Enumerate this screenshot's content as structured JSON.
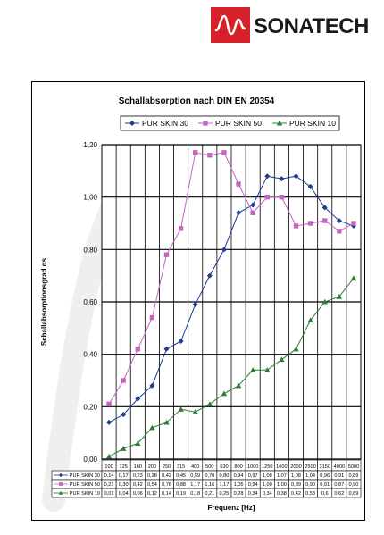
{
  "brand": {
    "name": "SONATECH",
    "logo_color": "#d6202a"
  },
  "chart_data": {
    "type": "line",
    "title": "Schallabsorption nach DIN EN 20354",
    "xlabel": "Frequenz [Hz]",
    "ylabel": "Schallabsorptionsgrad αs",
    "ylim": [
      0,
      1.2
    ],
    "y_ticks": [
      "0,00",
      "0,20",
      "0,40",
      "0,60",
      "0,80",
      "1,00",
      "1,20"
    ],
    "grid": true,
    "legend_position": "top",
    "categories": [
      "100",
      "125",
      "160",
      "200",
      "250",
      "315",
      "400",
      "500",
      "630",
      "800",
      "1000",
      "1250",
      "1600",
      "2000",
      "2500",
      "3150",
      "4000",
      "5000"
    ],
    "series": [
      {
        "name": "PUR SKIN 30",
        "color": "#1f3a93",
        "marker": "diamond",
        "values": [
          0.14,
          0.17,
          0.23,
          0.28,
          0.42,
          0.45,
          0.59,
          0.7,
          0.8,
          0.94,
          0.97,
          1.08,
          1.07,
          1.08,
          1.04,
          0.96,
          0.91,
          0.89
        ],
        "labels": [
          "0,14",
          "0,17",
          "0,23",
          "0,28",
          "0,42",
          "0,45",
          "0,59",
          "0,70",
          "0,80",
          "0,94",
          "0,97",
          "1,08",
          "1,07",
          "1,08",
          "1,04",
          "0,96",
          "0,91",
          "0,89"
        ]
      },
      {
        "name": "PUR SKIN 50",
        "color": "#c266c2",
        "marker": "square",
        "values": [
          0.21,
          0.3,
          0.42,
          0.54,
          0.78,
          0.88,
          1.17,
          1.16,
          1.17,
          1.05,
          0.94,
          1.0,
          1.0,
          0.89,
          0.9,
          0.91,
          0.87,
          0.9
        ],
        "labels": [
          "0,21",
          "0,30",
          "0,42",
          "0,54",
          "0,78",
          "0,88",
          "1,17",
          "1,16",
          "1,17",
          "1,05",
          "0,94",
          "1,00",
          "1,00",
          "0,89",
          "0,90",
          "0,91",
          "0,87",
          "0,90"
        ]
      },
      {
        "name": "PUR SKIN 10",
        "color": "#2e7d32",
        "marker": "triangle",
        "values": [
          0.01,
          0.04,
          0.06,
          0.12,
          0.14,
          0.19,
          0.18,
          0.21,
          0.25,
          0.28,
          0.34,
          0.34,
          0.38,
          0.42,
          0.53,
          0.6,
          0.62,
          0.69
        ],
        "labels": [
          "0,01",
          "0,04",
          "0,06",
          "0,12",
          "0,14",
          "0,19",
          "0,18",
          "0,21",
          "0,25",
          "0,28",
          "0,34",
          "0,34",
          "0,38",
          "0,42",
          "0,53",
          "0,6",
          "0,62",
          "0,69"
        ]
      }
    ]
  }
}
